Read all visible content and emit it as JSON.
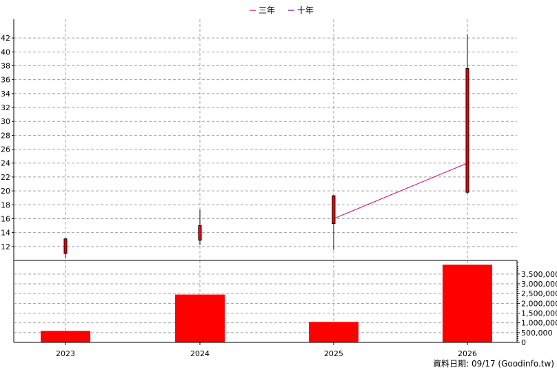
{
  "chart_data": [
    {
      "type": "candlestick",
      "legend": [
        {
          "name": "三年",
          "color": "#e0006a"
        },
        {
          "name": "十年",
          "color": "#7000c0"
        }
      ],
      "legend_placement": "top-center",
      "categories": [
        "2023",
        "2024",
        "2025",
        "2026"
      ],
      "ohlc": [
        {
          "x": "2023",
          "open": 11.0,
          "high": 13.2,
          "low": 10.3,
          "close": 13.1
        },
        {
          "x": "2024",
          "open": 12.9,
          "high": 17.3,
          "low": 12.2,
          "close": 15.0
        },
        {
          "x": "2025",
          "open": 15.3,
          "high": 19.4,
          "low": 11.5,
          "close": 19.3
        },
        {
          "x": "2026",
          "open": 19.8,
          "high": 42.5,
          "low": 19.6,
          "close": 37.6
        }
      ],
      "line_series": [
        {
          "name": "三年",
          "x": [
            "2025",
            "2026"
          ],
          "values": [
            16.0,
            24.0
          ]
        }
      ],
      "y_ticks": [
        12,
        14,
        16,
        18,
        20,
        22,
        24,
        26,
        28,
        30,
        32,
        34,
        36,
        38,
        40,
        42
      ],
      "ylim": [
        10.0,
        43.5
      ],
      "grid": true
    },
    {
      "type": "bar",
      "categories": [
        "2023",
        "2024",
        "2025",
        "2026"
      ],
      "values": [
        590000,
        2450000,
        1050000,
        3980000
      ],
      "y_ticks": [
        "0",
        "500,000",
        "1,000,000",
        "1,500,000",
        "2,000,000",
        "2,500,000",
        "3,000,000",
        "3,500,000"
      ],
      "ylim": [
        0,
        4200000
      ],
      "color": "#ff0000",
      "grid": true
    }
  ],
  "footer": "資料日期: 09/17  (Goodinfo.tw)"
}
